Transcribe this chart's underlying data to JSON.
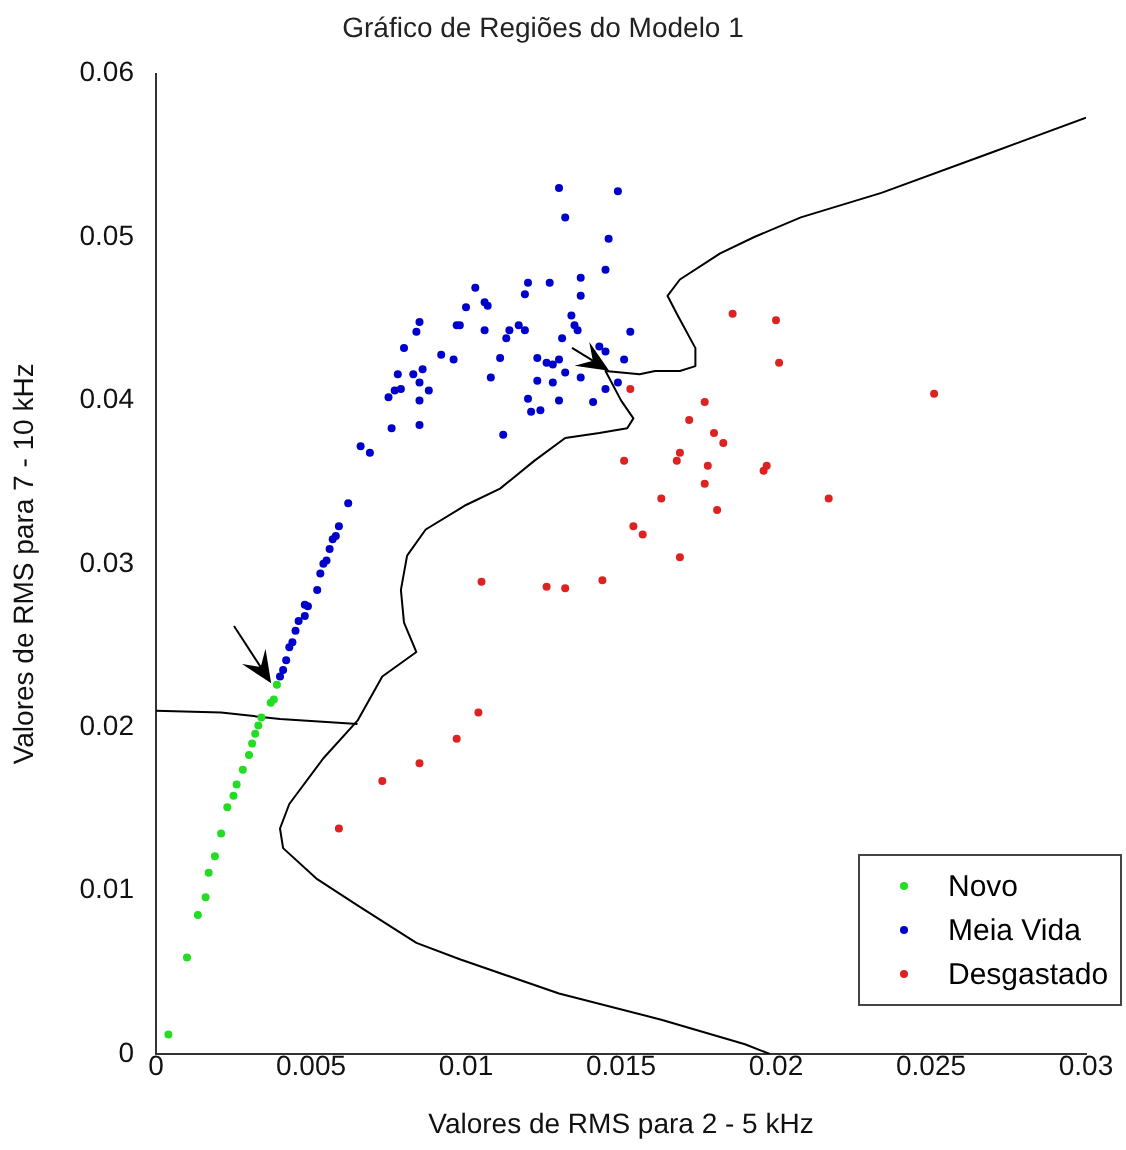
{
  "chart_data": {
    "type": "scatter",
    "title": "Gráfico de Regiões do Modelo 1",
    "xlabel": "Valores de RMS para 2 - 5 kHz",
    "ylabel": "Valores de RMS para 7 - 10 kHz",
    "xlim": [
      0,
      0.03
    ],
    "xticks": [
      0,
      0.005,
      0.01,
      0.015,
      0.02,
      0.025,
      0.03
    ],
    "ylim": [
      0,
      0.06
    ],
    "yticks": [
      0,
      0.01,
      0.02,
      0.03,
      0.04,
      0.05,
      0.06
    ],
    "grid": false,
    "legend": "bottom right",
    "series": [
      {
        "name": "Novo",
        "marker": "circle",
        "color": "#22dd22",
        "x": [
          0.0004,
          0.001,
          0.00135,
          0.0016,
          0.0017,
          0.0019,
          0.0021,
          0.0023,
          0.0025,
          0.0026,
          0.0028,
          0.003,
          0.0031,
          0.0032,
          0.0033,
          0.0034,
          0.0037,
          0.0038,
          0.0039
        ],
        "values": [
          0.0012,
          0.0059,
          0.0085,
          0.0096,
          0.0111,
          0.0121,
          0.0135,
          0.0151,
          0.0158,
          0.0165,
          0.0174,
          0.0183,
          0.019,
          0.0196,
          0.0201,
          0.0206,
          0.0215,
          0.0217,
          0.0226
        ]
      },
      {
        "name": "Meia Vida",
        "marker": "circle",
        "color": "#0000cc",
        "x": [
          0.013,
          0.0149,
          0.0132,
          0.0146,
          0.0145,
          0.0137,
          0.0137,
          0.0103,
          0.012,
          0.0127,
          0.0119,
          0.0106,
          0.0107,
          0.01,
          0.0097,
          0.0098,
          0.0106,
          0.0114,
          0.0117,
          0.0119,
          0.0113,
          0.0134,
          0.0135,
          0.0136,
          0.0131,
          0.0153,
          0.0085,
          0.0084,
          0.008,
          0.0092,
          0.0096,
          0.0111,
          0.0123,
          0.0126,
          0.0128,
          0.013,
          0.0143,
          0.0145,
          0.0151,
          0.0078,
          0.0083,
          0.0086,
          0.0079,
          0.0077,
          0.0075,
          0.0085,
          0.0088,
          0.0085,
          0.0108,
          0.0123,
          0.0128,
          0.0132,
          0.0137,
          0.0145,
          0.0149,
          0.012,
          0.013,
          0.0141,
          0.0121,
          0.0124,
          0.0076,
          0.0085,
          0.0112,
          0.0066,
          0.0069,
          0.0062,
          0.0059,
          0.0058,
          0.0057,
          0.0056,
          0.0055,
          0.0054,
          0.0053,
          0.0052,
          0.0049,
          0.0048,
          0.0048,
          0.0046,
          0.0045,
          0.0044,
          0.0043,
          0.0042,
          0.0041,
          0.004
        ],
        "values": [
          0.053,
          0.0528,
          0.0512,
          0.0499,
          0.048,
          0.0475,
          0.0464,
          0.0469,
          0.0472,
          0.0472,
          0.0465,
          0.046,
          0.0458,
          0.0457,
          0.0446,
          0.0446,
          0.0443,
          0.0443,
          0.0446,
          0.0443,
          0.0438,
          0.0452,
          0.0446,
          0.0443,
          0.0438,
          0.0442,
          0.0448,
          0.0442,
          0.0432,
          0.0428,
          0.0425,
          0.0426,
          0.0426,
          0.0423,
          0.0422,
          0.0425,
          0.0433,
          0.043,
          0.0425,
          0.0416,
          0.0416,
          0.0419,
          0.0407,
          0.0406,
          0.0402,
          0.0411,
          0.0406,
          0.04,
          0.0414,
          0.0412,
          0.0411,
          0.0417,
          0.0414,
          0.0407,
          0.0411,
          0.0401,
          0.04,
          0.0399,
          0.0393,
          0.0394,
          0.0383,
          0.0385,
          0.0379,
          0.0372,
          0.0368,
          0.0337,
          0.0323,
          0.0317,
          0.0315,
          0.0309,
          0.0302,
          0.03,
          0.0294,
          0.0284,
          0.0274,
          0.0275,
          0.0268,
          0.0265,
          0.0259,
          0.0252,
          0.0249,
          0.0241,
          0.0235,
          0.0231
        ]
      },
      {
        "name": "Desgastado",
        "marker": "circle",
        "color": "#dd2222",
        "x": [
          0.0186,
          0.02,
          0.0201,
          0.0251,
          0.0153,
          0.0177,
          0.0172,
          0.018,
          0.0183,
          0.0169,
          0.0168,
          0.0151,
          0.0178,
          0.0197,
          0.0196,
          0.0177,
          0.0163,
          0.0181,
          0.0217,
          0.0154,
          0.0157,
          0.0169,
          0.0144,
          0.0132,
          0.0105,
          0.0126,
          0.0073,
          0.0059,
          0.0085,
          0.0097,
          0.0104
        ],
        "values": [
          0.0453,
          0.0449,
          0.0423,
          0.0404,
          0.0407,
          0.0399,
          0.0388,
          0.038,
          0.0374,
          0.0368,
          0.0363,
          0.0363,
          0.036,
          0.036,
          0.0357,
          0.0349,
          0.034,
          0.0333,
          0.034,
          0.0323,
          0.0318,
          0.0304,
          0.029,
          0.0285,
          0.0289,
          0.0286,
          0.0167,
          0.0138,
          0.0178,
          0.0193,
          0.0209
        ]
      },
      {
        "type": "line",
        "color": "#000000",
        "line_style": "solid",
        "x": [
          0,
          0.0021,
          0.004,
          0.0065
        ],
        "values": [
          0.021,
          0.0209,
          0.0205,
          0.0202
        ]
      },
      {
        "type": "line",
        "color": "#000000",
        "line_style": "solid",
        "x": [
          0.03,
          0.027,
          0.0234,
          0.0208,
          0.0193,
          0.0182,
          0.0169,
          0.0165,
          0.0168,
          0.0174,
          0.0174,
          0.0169,
          0.0161,
          0.0156,
          0.0145,
          0.015,
          0.0154,
          0.0152,
          0.0143,
          0.0132,
          0.0122,
          0.0111,
          0.01,
          0.0087,
          0.0081,
          0.0079,
          0.008,
          0.0084,
          0.0073,
          0.0065,
          0.0054,
          0.0043,
          0.004,
          0.0041,
          0.0052,
          0.0065,
          0.0084,
          0.0098,
          0.013,
          0.0163,
          0.019,
          0.0198
        ],
        "values": [
          0.0573,
          0.0552,
          0.0527,
          0.0512,
          0.05,
          0.049,
          0.0474,
          0.0464,
          0.0453,
          0.0432,
          0.0421,
          0.0418,
          0.0418,
          0.0416,
          0.0418,
          0.04,
          0.0389,
          0.0383,
          0.038,
          0.0377,
          0.0363,
          0.0346,
          0.0336,
          0.0321,
          0.0305,
          0.0284,
          0.0264,
          0.0246,
          0.0231,
          0.0204,
          0.0181,
          0.0153,
          0.0138,
          0.0126,
          0.0107,
          0.0091,
          0.0068,
          0.0058,
          0.0037,
          0.0021,
          0.0006,
          0
        ]
      }
    ]
  }
}
